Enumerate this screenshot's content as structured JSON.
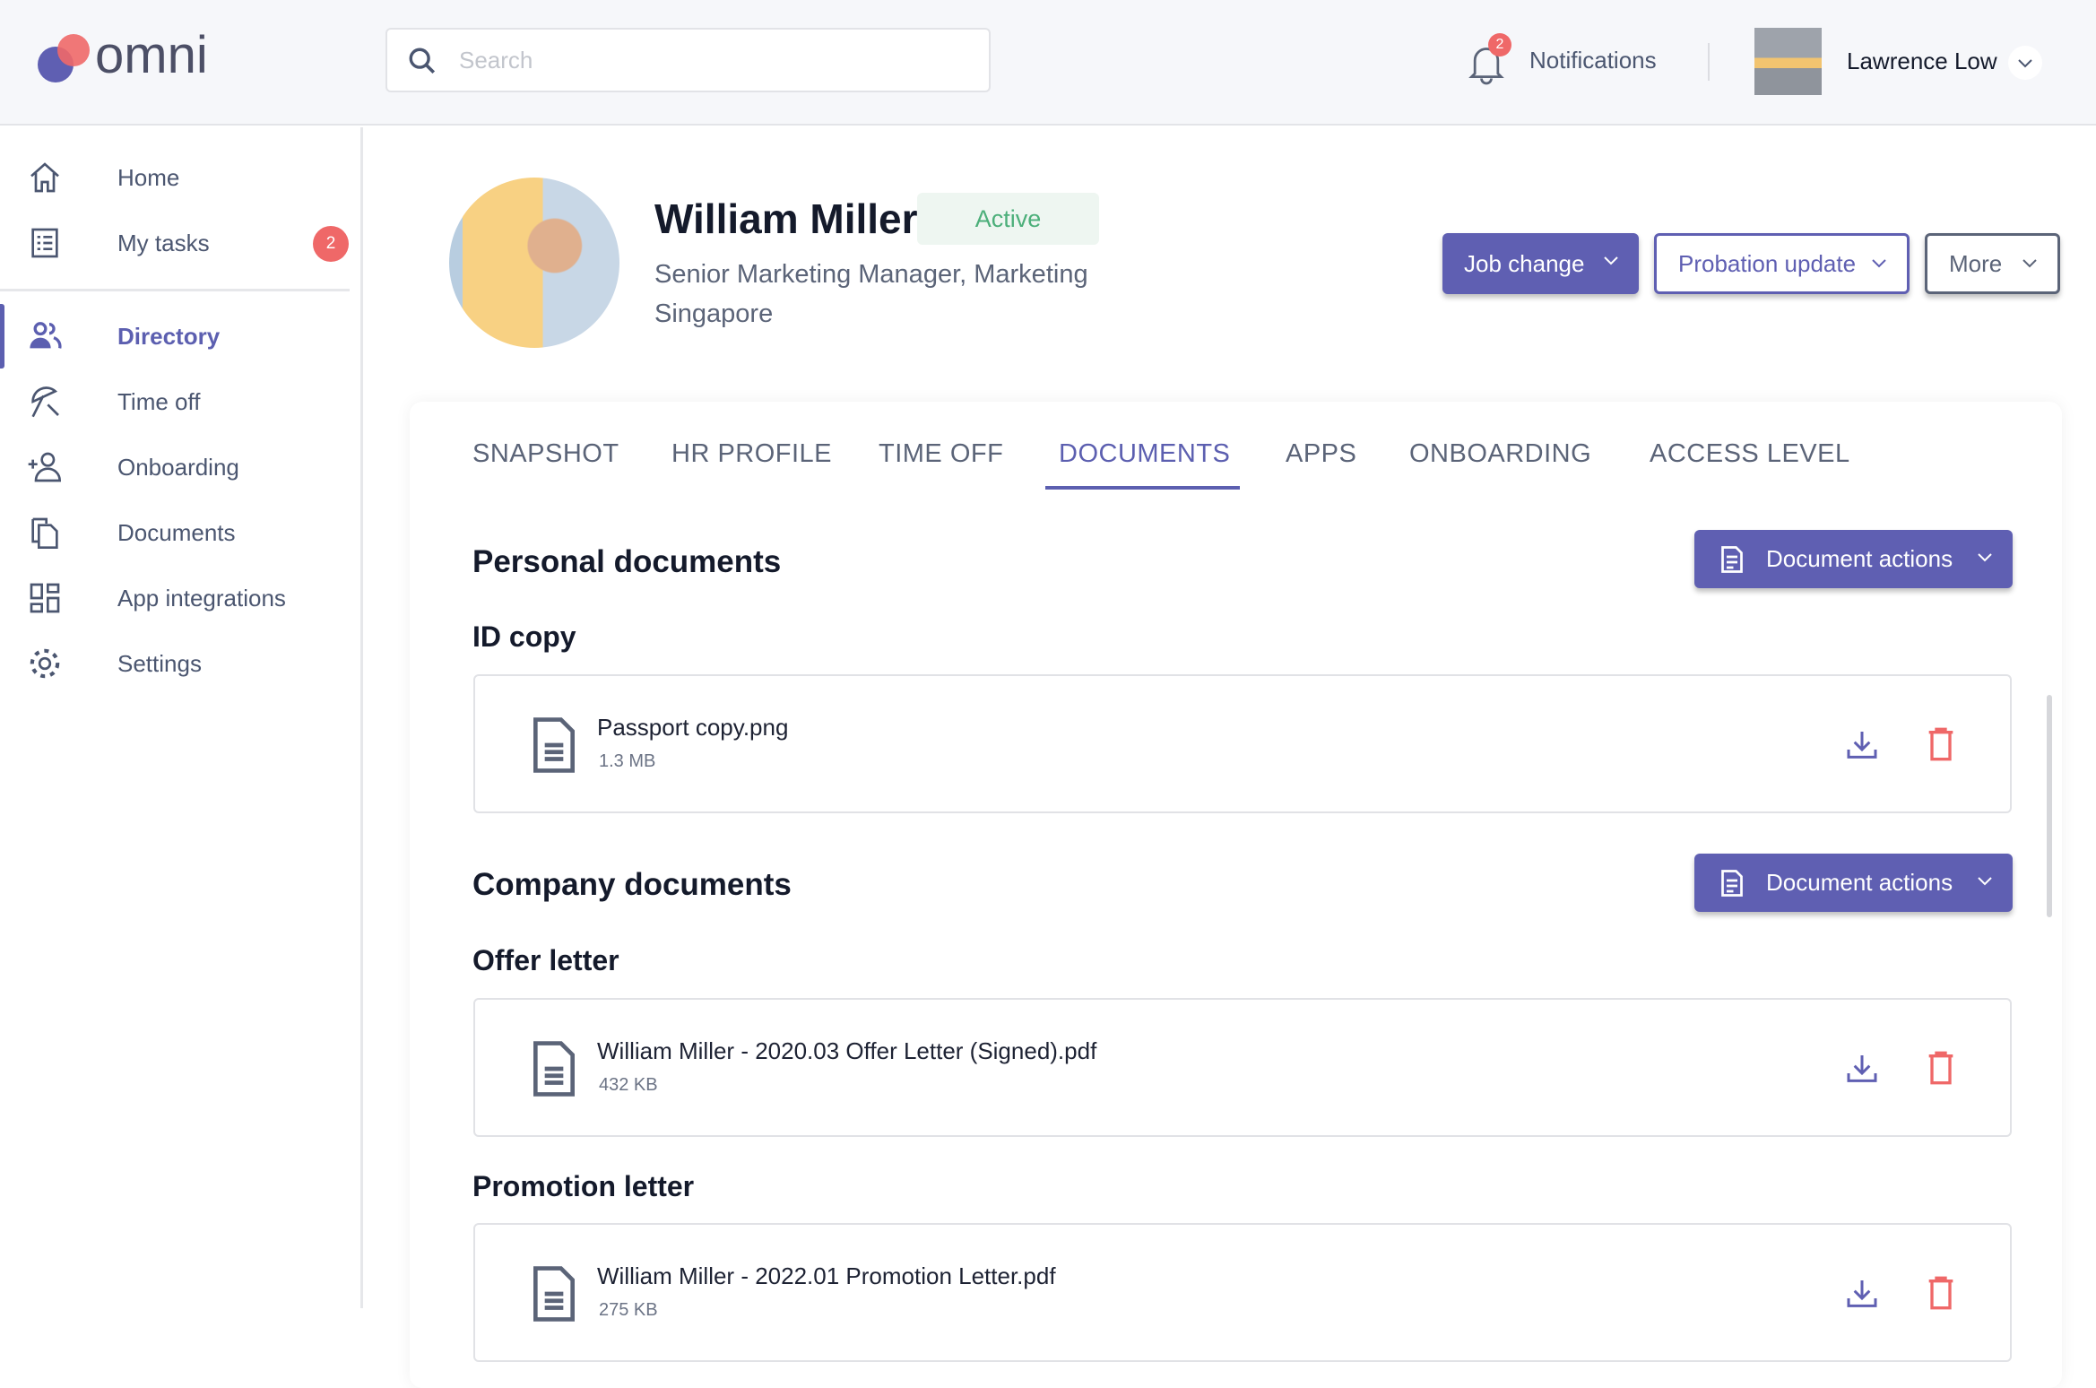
{
  "header": {
    "logo_text": "omni",
    "search_placeholder": "Search",
    "notifications_label": "Notifications",
    "notifications_count": "2",
    "user_name": "Lawrence Low"
  },
  "sidebar": {
    "items": [
      {
        "label": "Home",
        "icon": "home-icon"
      },
      {
        "label": "My tasks",
        "icon": "tasks-icon",
        "badge": "2"
      },
      {
        "label": "Directory",
        "icon": "people-icon",
        "active": true
      },
      {
        "label": "Time off",
        "icon": "beach-umbrella-icon"
      },
      {
        "label": "Onboarding",
        "icon": "add-user-icon"
      },
      {
        "label": "Documents",
        "icon": "documents-icon"
      },
      {
        "label": "App integrations",
        "icon": "grid-icon"
      },
      {
        "label": "Settings",
        "icon": "gear-icon"
      }
    ]
  },
  "profile": {
    "name": "William Miller",
    "status": "Active",
    "title": "Senior Marketing Manager, Marketing",
    "location": "Singapore",
    "actions": {
      "job_change": "Job change",
      "probation_update": "Probation update",
      "more": "More"
    }
  },
  "tabs": [
    "SNAPSHOT",
    "HR PROFILE",
    "TIME OFF",
    "DOCUMENTS",
    "APPS",
    "ONBOARDING",
    "ACCESS LEVEL"
  ],
  "active_tab": "DOCUMENTS",
  "colors": {
    "accent": "#5f5fb2",
    "danger": "#ef6868",
    "active_green": "#4caf7a"
  },
  "sections": [
    {
      "title": "Personal documents",
      "action": "Document actions",
      "groups": [
        {
          "title": "ID copy",
          "files": [
            {
              "name": "Passport copy.png",
              "size": "1.3 MB"
            }
          ]
        }
      ]
    },
    {
      "title": "Company documents",
      "action": "Document actions",
      "groups": [
        {
          "title": "Offer letter",
          "files": [
            {
              "name": "William Miller - 2020.03 Offer Letter (Signed).pdf",
              "size": "432 KB"
            }
          ]
        },
        {
          "title": "Promotion letter",
          "files": [
            {
              "name": "William Miller - 2022.01 Promotion Letter.pdf",
              "size": "275 KB"
            }
          ]
        }
      ]
    }
  ]
}
